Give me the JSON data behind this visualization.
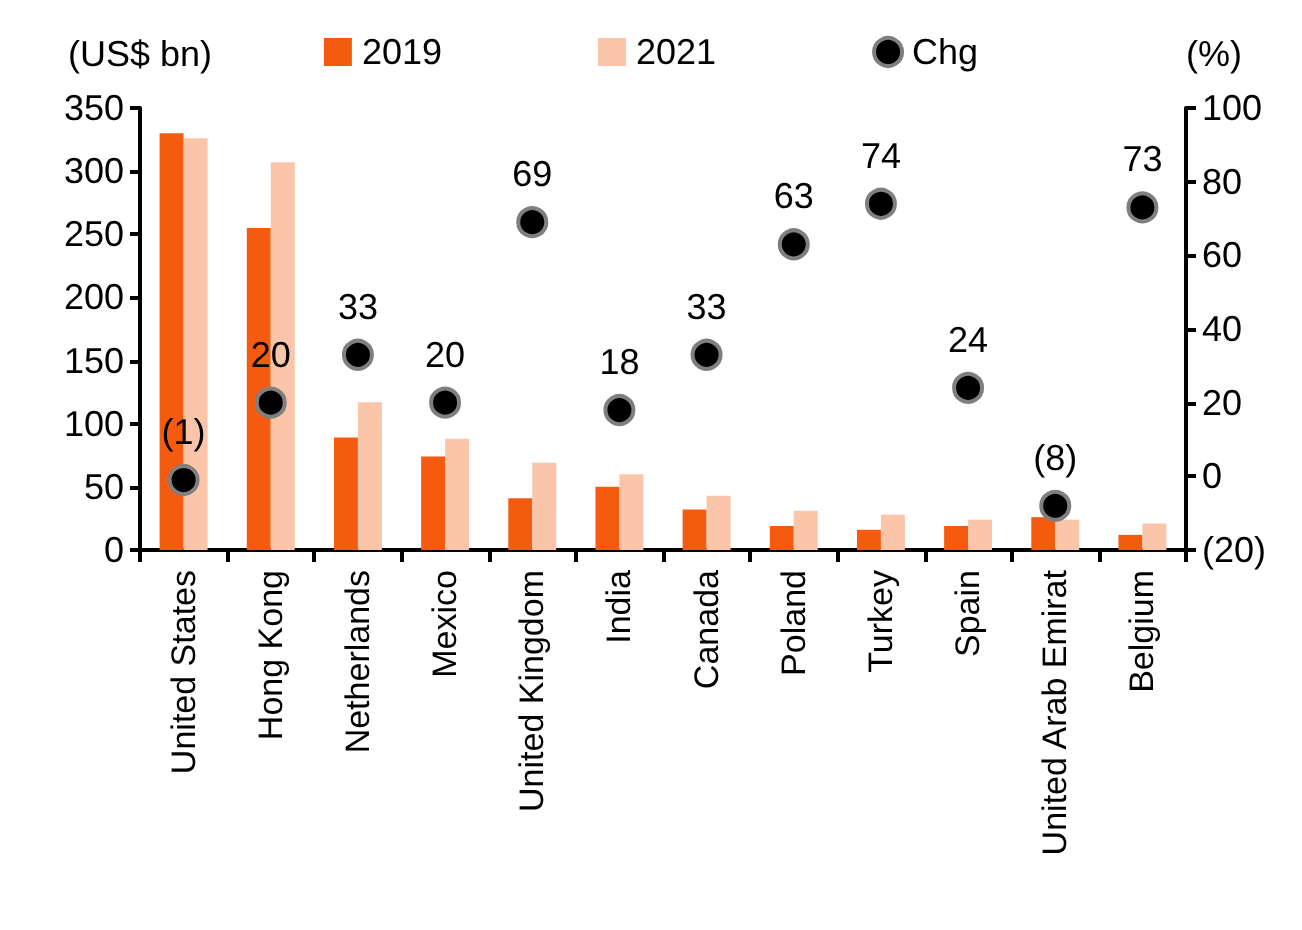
{
  "chart_data": {
    "type": "bar",
    "ylabel": "(US$ bn)",
    "y2label": "(%)",
    "categories": [
      "United States",
      "Hong Kong",
      "Netherlands",
      "Mexico",
      "United Kingdom",
      "India",
      "Canada",
      "Poland",
      "Turkey",
      "Spain",
      "United Arab Emirat",
      "Belgium"
    ],
    "series": [
      {
        "name": "2019",
        "color": "#f55b0f",
        "values": [
          330,
          255,
          89,
          74,
          41,
          50,
          32,
          19,
          16,
          19,
          26,
          12
        ]
      },
      {
        "name": "2021",
        "color": "#fbc5aa",
        "values": [
          326,
          307,
          117,
          88,
          69,
          60,
          43,
          31,
          28,
          24,
          24,
          21
        ]
      },
      {
        "name": "Chg",
        "type": "scatter",
        "axis": "y2",
        "color": "#000000",
        "values": [
          -1,
          20,
          33,
          20,
          69,
          18,
          33,
          63,
          74,
          24,
          -8,
          73
        ],
        "value_labels": [
          "(1)",
          "20",
          "33",
          "20",
          "69",
          "18",
          "33",
          "63",
          "74",
          "24",
          "(8)",
          "73"
        ]
      }
    ],
    "ylim": [
      0,
      350
    ],
    "yticks": [
      0,
      50,
      100,
      150,
      200,
      250,
      300,
      350
    ],
    "y2lim": [
      -20,
      100
    ],
    "y2ticks": [
      {
        "value": -20,
        "label": "(20)"
      },
      0,
      20,
      40,
      60,
      80,
      100
    ],
    "legend": "top",
    "marker": "circle"
  }
}
